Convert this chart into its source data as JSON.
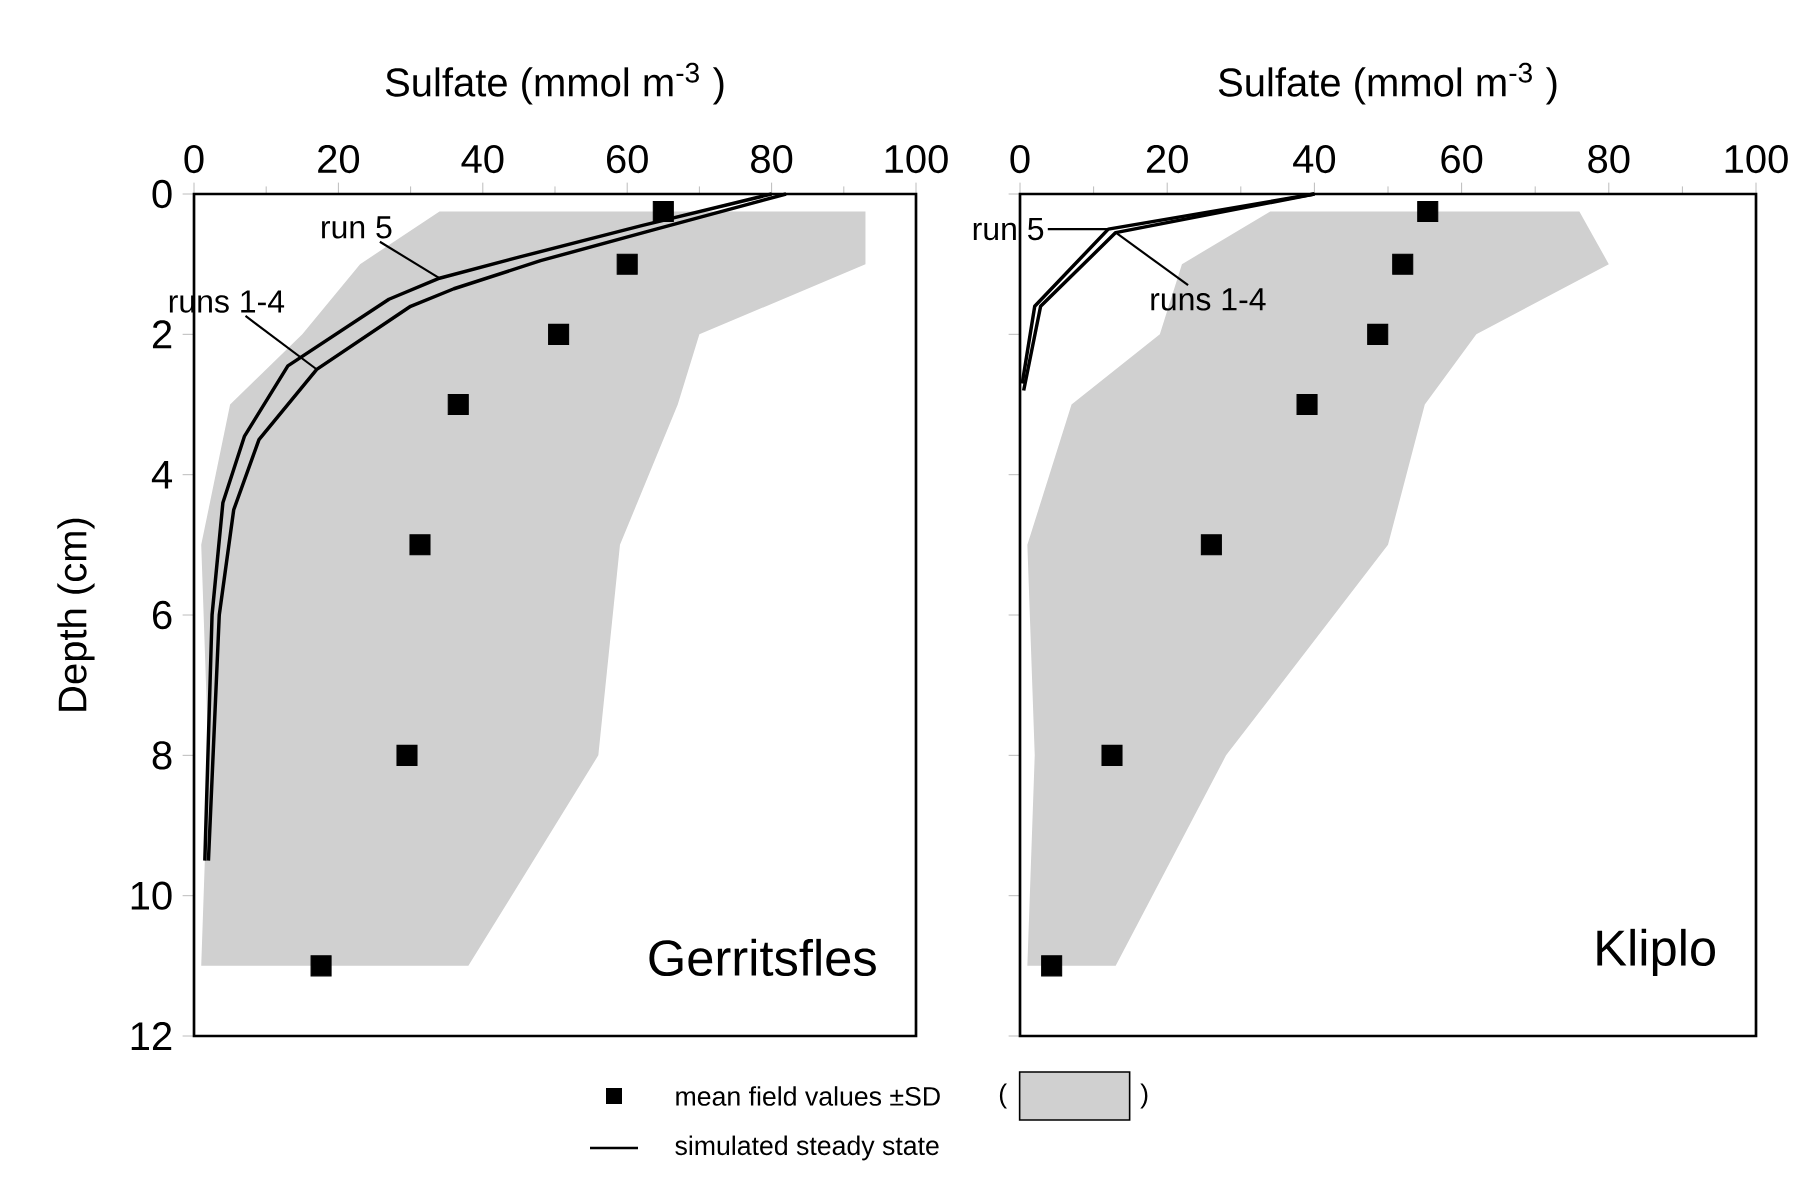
{
  "chart_data": [
    {
      "type": "scatter",
      "title": "Gerritsfles",
      "xlabel": "Sulfate (mmol m$^{-3}$ )",
      "ylabel": "Depth (cm)",
      "xlim": [
        0,
        100
      ],
      "xticks": [
        0,
        20,
        40,
        60,
        80,
        100
      ],
      "ylim": [
        12,
        0
      ],
      "yticks": [
        0,
        2,
        4,
        6,
        8,
        10,
        12
      ],
      "legend": "bottom",
      "annotations": [
        "(",
        ")",
        "simulated steady state"
      ],
      "series": [
        {
          "type": "area",
          "color": "#d0d0d0",
          "x": [
            34,
            23,
            15,
            5,
            1,
            2,
            1,
            38,
            56,
            59,
            67,
            70,
            93,
            93
          ],
          "values": [
            0.25,
            1,
            2,
            3,
            5,
            8,
            11,
            11,
            8,
            5,
            3,
            2,
            1,
            0.25
          ]
        },
        {
          "name": "mean field values ±SD",
          "marker": "square",
          "color": "#000000",
          "x": [
            65,
            60,
            50.5,
            36.6,
            31.3,
            29.5,
            17.6
          ],
          "values": [
            0.25,
            1,
            2,
            3,
            5,
            8,
            11
          ]
        },
        {
          "name": "run 5",
          "type": "line",
          "color": "#000000",
          "x": [
            80,
            62,
            45,
            34,
            27,
            13,
            7,
            4,
            2.5,
            1.5
          ],
          "values": [
            0,
            0.45,
            0.9,
            1.2,
            1.5,
            2.45,
            3.45,
            4.4,
            6,
            9.5
          ]
        },
        {
          "name": "runs 1-4",
          "type": "line",
          "color": "#000000",
          "x": [
            82,
            64,
            48,
            36,
            30,
            17,
            9,
            5.5,
            3.5,
            2
          ],
          "values": [
            0,
            0.5,
            0.95,
            1.35,
            1.6,
            2.5,
            3.5,
            4.5,
            6,
            9.5
          ]
        }
      ]
    },
    {
      "type": "scatter",
      "title": "Kliplo",
      "xlabel": "Sulfate (mmol m$^{-3}$ )",
      "xlim": [
        0,
        100
      ],
      "xticks": [
        0,
        20,
        40,
        60,
        80,
        100
      ],
      "ylim": [
        12,
        0
      ],
      "yticks": [
        0,
        2,
        4,
        6,
        8,
        10,
        12
      ],
      "tick_labels": "x",
      "series": [
        {
          "type": "area",
          "color": "#d0d0d0",
          "x": [
            34,
            22,
            19,
            7,
            1,
            2,
            1,
            13,
            28,
            50,
            55,
            62,
            80,
            76
          ],
          "values": [
            0.25,
            1,
            2,
            3,
            5,
            8,
            11,
            11,
            8,
            5,
            3,
            2,
            1,
            0.25
          ]
        },
        {
          "marker": "square",
          "color": "#000000",
          "x": [
            55.4,
            52,
            48.6,
            39,
            26,
            12.5,
            4.3
          ],
          "values": [
            0.25,
            1,
            2,
            3,
            5,
            8,
            11
          ]
        },
        {
          "name": "run 5",
          "type": "line",
          "color": "#000000",
          "x": [
            40,
            12,
            2,
            0.3
          ],
          "values": [
            0,
            0.5,
            1.6,
            2.7
          ]
        },
        {
          "name": "runs 1-4",
          "type": "line",
          "color": "#000000",
          "x": [
            40,
            13,
            2.8,
            0.5
          ],
          "values": [
            0,
            0.55,
            1.6,
            2.8
          ]
        }
      ]
    }
  ]
}
